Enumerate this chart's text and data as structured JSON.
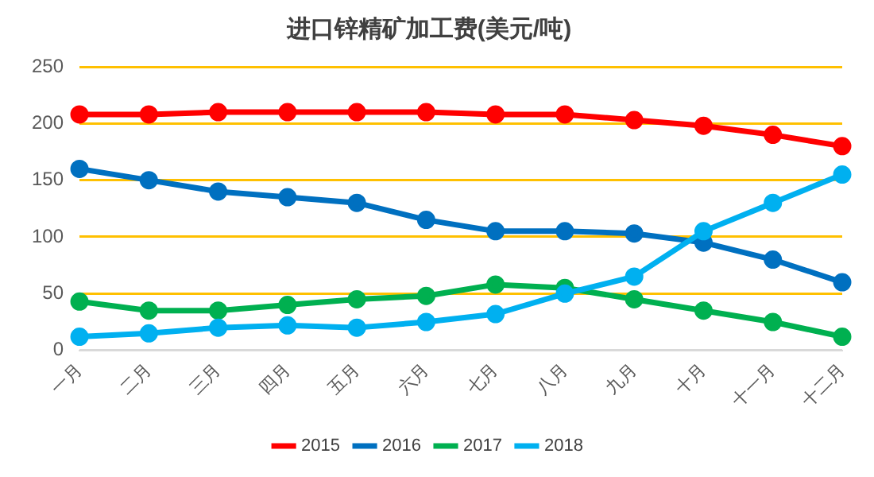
{
  "chart_data": {
    "type": "line",
    "title": "进口锌精矿加工费(美元/吨)",
    "categories": [
      "一月",
      "二月",
      "三月",
      "四月",
      "五月",
      "六月",
      "七月",
      "八月",
      "九月",
      "十月",
      "十一月",
      "十二月"
    ],
    "series": [
      {
        "name": "2015",
        "color": "#ff0000",
        "values": [
          208,
          208,
          210,
          210,
          210,
          210,
          208,
          208,
          203,
          198,
          190,
          180
        ]
      },
      {
        "name": "2016",
        "color": "#0070c0",
        "values": [
          160,
          150,
          140,
          135,
          130,
          115,
          105,
          105,
          103,
          95,
          80,
          60
        ]
      },
      {
        "name": "2017",
        "color": "#00b050",
        "values": [
          43,
          35,
          35,
          40,
          45,
          48,
          58,
          55,
          45,
          35,
          25,
          12
        ]
      },
      {
        "name": "2018",
        "color": "#00b0f0",
        "values": [
          12,
          15,
          20,
          22,
          20,
          25,
          32,
          50,
          65,
          105,
          130,
          155
        ]
      }
    ],
    "ylim": [
      0,
      250
    ],
    "yticks": [
      0,
      50,
      100,
      150,
      200,
      250
    ],
    "grid": "y",
    "legend": "bottom",
    "marker": "circle",
    "line_style": "solid"
  }
}
